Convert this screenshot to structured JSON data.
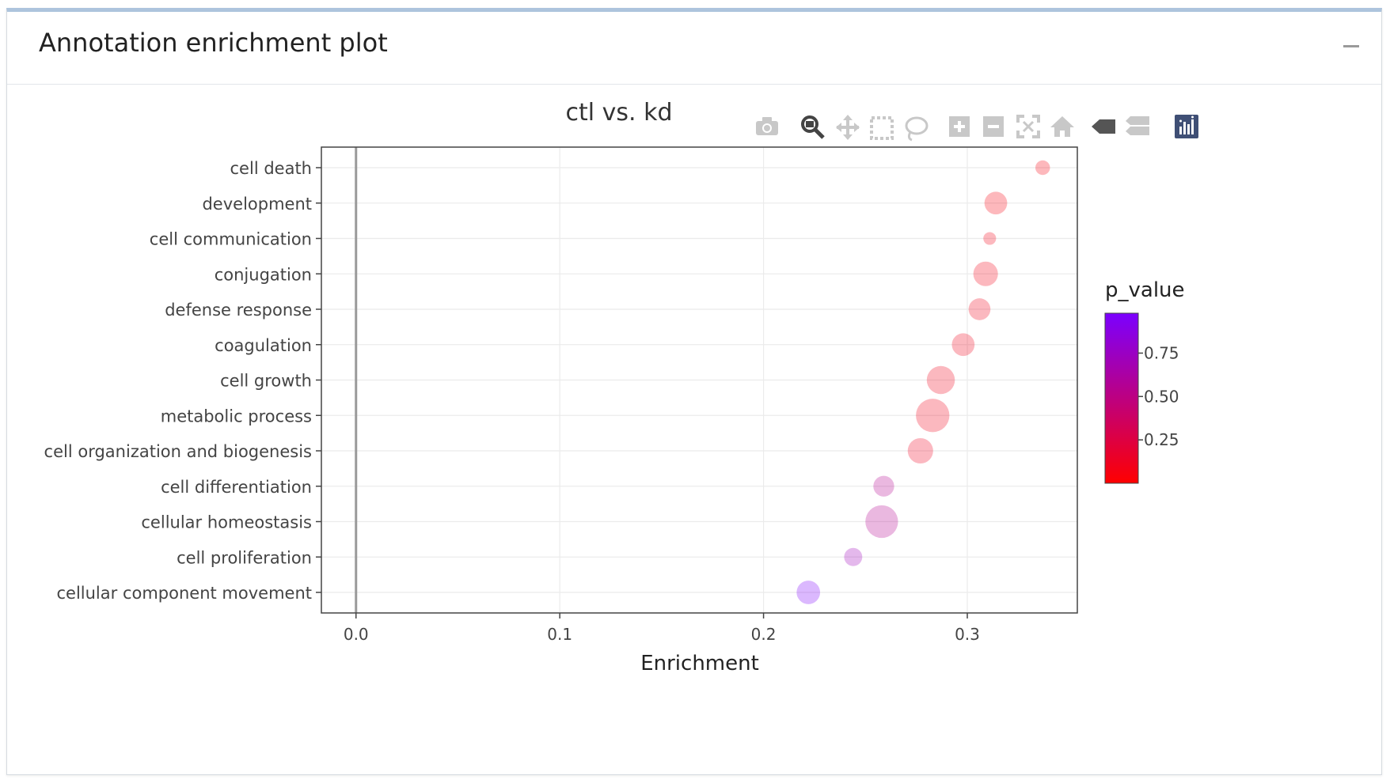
{
  "panel": {
    "title": "Annotation enrichment plot"
  },
  "toolbar": {
    "icons": [
      "camera-icon",
      "zoom-icon",
      "pan-icon",
      "box-select-icon",
      "lasso-select-icon",
      "zoom-in-icon",
      "zoom-out-icon",
      "autoscale-icon",
      "reset-axes-icon",
      "hover-closest-icon",
      "hover-compare-icon",
      "plotly-logo-icon"
    ]
  },
  "chart_data": {
    "type": "scatter",
    "title": "ctl vs. kd",
    "xlabel": "Enrichment",
    "ylabel": "",
    "xlim": [
      -0.017,
      0.354
    ],
    "xticks": [
      0.0,
      0.1,
      0.2,
      0.3
    ],
    "xtick_labels": [
      "0.0",
      "0.1",
      "0.2",
      "0.3"
    ],
    "grid": true,
    "categories": [
      "cell death",
      "development",
      "cell communication",
      "conjugation",
      "defense response",
      "coagulation",
      "cell growth",
      "metabolic process",
      "cell organization and biogenesis",
      "cell differentiation",
      "cellular homeostasis",
      "cell proliferation",
      "cellular component movement"
    ],
    "x": [
      0.337,
      0.314,
      0.311,
      0.309,
      0.306,
      0.298,
      0.287,
      0.283,
      0.277,
      0.259,
      0.258,
      0.244,
      0.222
    ],
    "size": [
      0.25,
      0.55,
      0.18,
      0.62,
      0.52,
      0.55,
      0.75,
      0.95,
      0.65,
      0.48,
      0.92,
      0.38,
      0.58
    ],
    "p_value": [
      0.05,
      0.06,
      0.08,
      0.08,
      0.1,
      0.1,
      0.1,
      0.1,
      0.12,
      0.55,
      0.55,
      0.72,
      0.97
    ],
    "colorbar": {
      "title": "p_value",
      "ticks": [
        0.25,
        0.5,
        0.75
      ],
      "tick_labels": [
        "0.25",
        "0.50",
        "0.75"
      ],
      "range": [
        0.0,
        0.98
      ],
      "colors": [
        "#ff0000",
        "#7b00ff"
      ]
    }
  }
}
